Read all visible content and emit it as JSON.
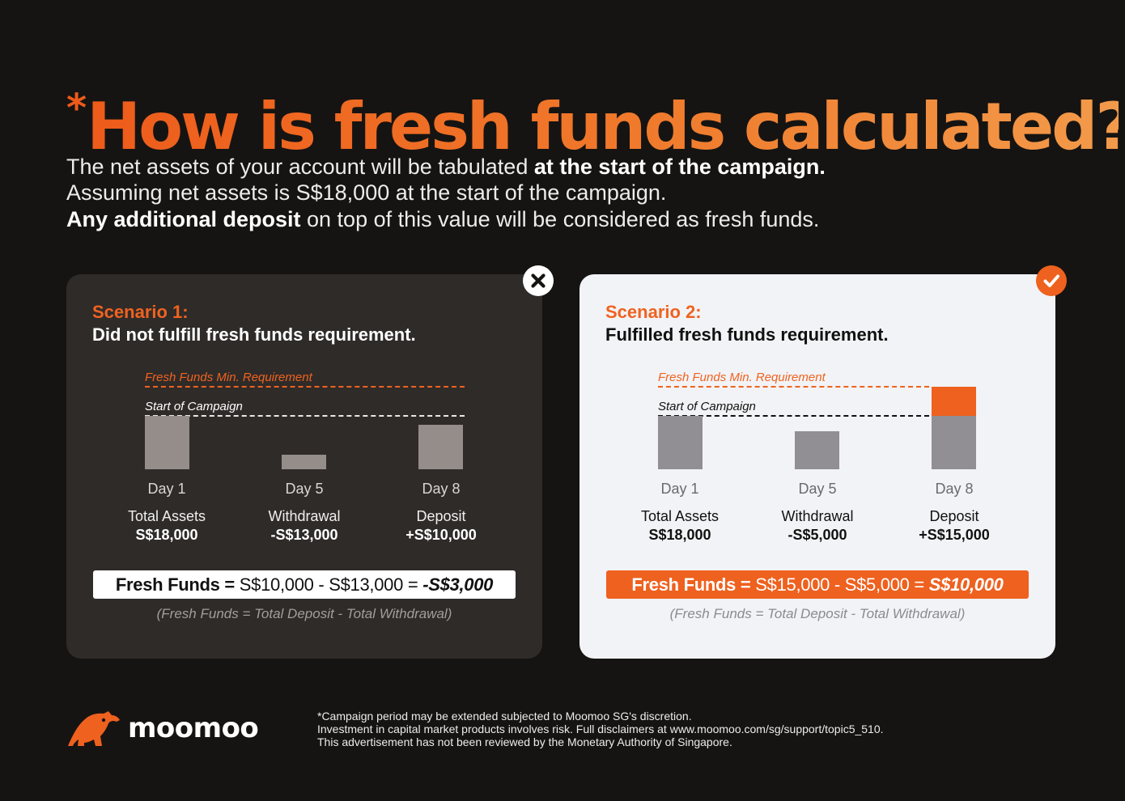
{
  "title": {
    "star": "*",
    "text": "How is fresh funds calculated?"
  },
  "intro": {
    "line1_a": "The net assets of your account will be tabulated ",
    "line1_b": "at the start of the campaign.",
    "line2": "Assuming net assets is S$18,000 at the start of the campaign.",
    "line3_a": "Any additional deposit",
    "line3_b": " on top of this value will be considered as fresh funds."
  },
  "scenarios": [
    {
      "label": "Scenario 1:",
      "subtitle": "Did not fulfill fresh funds requirement.",
      "status_icon": "x-icon",
      "ref_min": "Fresh Funds Min. Requirement",
      "ref_start": "Start of Campaign",
      "columns": [
        {
          "day": "Day 1",
          "kind": "Total Assets",
          "amount": "S$18,000",
          "level": 18000
        },
        {
          "day": "Day 5",
          "kind": "Withdrawal",
          "amount": "-S$13,000",
          "level": 5000
        },
        {
          "day": "Day 8",
          "kind": "Deposit",
          "amount": "+S$10,000",
          "level": 15000
        }
      ],
      "formula": {
        "label": "Fresh Funds = ",
        "expr": "S$10,000 - S$13,000 = ",
        "result": "-S$3,000"
      },
      "note": "(Fresh Funds = Total Deposit - Total Withdrawal)"
    },
    {
      "label": "Scenario 2:",
      "subtitle": "Fulfilled fresh funds requirement.",
      "status_icon": "check-icon",
      "ref_min": "Fresh Funds Min. Requirement",
      "ref_start": "Start of Campaign",
      "columns": [
        {
          "day": "Day 1",
          "kind": "Total Assets",
          "amount": "S$18,000",
          "level": 18000
        },
        {
          "day": "Day 5",
          "kind": "Withdrawal",
          "amount": "-S$5,000",
          "level": 13000
        },
        {
          "day": "Day 8",
          "kind": "Deposit",
          "amount": "+S$15,000",
          "level": 28000
        }
      ],
      "formula": {
        "label": "Fresh Funds = ",
        "expr": "S$15,000 - S$5,000 = ",
        "result": "S$10,000"
      },
      "note": "(Fresh Funds = Total Deposit - Total Withdrawal)"
    }
  ],
  "brand": {
    "name": "moomoo",
    "accent": "#ee611f"
  },
  "footer": {
    "line1": "*Campaign period may be extended subjected to Moomoo SG's discretion.",
    "line2": "Investment in capital market products involves risk. Full disclaimers at www.moomoo.com/sg/support/topic5_510.",
    "line3": "This advertisement has not been reviewed by the Monetary Authority of Singapore."
  }
}
